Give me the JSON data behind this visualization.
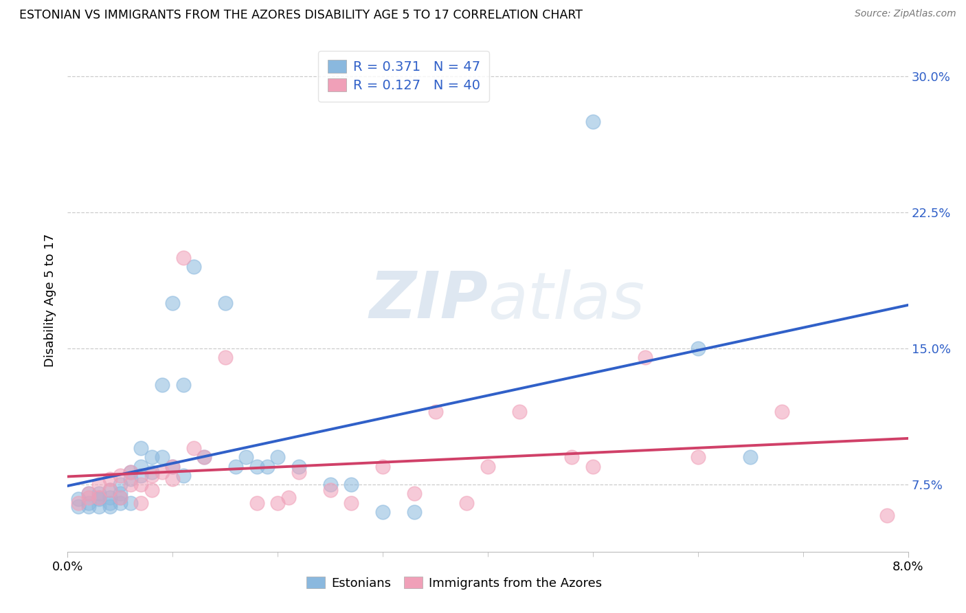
{
  "title": "ESTONIAN VS IMMIGRANTS FROM THE AZORES DISABILITY AGE 5 TO 17 CORRELATION CHART",
  "source": "Source: ZipAtlas.com",
  "ylabel": "Disability Age 5 to 17",
  "y_ticks": [
    0.075,
    0.15,
    0.225,
    0.3
  ],
  "y_tick_labels": [
    "7.5%",
    "15.0%",
    "22.5%",
    "30.0%"
  ],
  "x_min": 0.0,
  "x_max": 0.08,
  "y_min": 0.038,
  "y_max": 0.315,
  "legend_label1": "Estonians",
  "legend_label2": "Immigrants from the Azores",
  "r1": 0.371,
  "n1": 47,
  "r2": 0.127,
  "n2": 40,
  "color_blue": "#8ab8de",
  "color_pink": "#f0a0b8",
  "line_blue": "#3060c8",
  "line_pink": "#d04068",
  "watermark_zip": "ZIP",
  "watermark_atlas": "atlas",
  "blue_x": [
    0.001,
    0.001,
    0.002,
    0.002,
    0.002,
    0.003,
    0.003,
    0.003,
    0.003,
    0.004,
    0.004,
    0.004,
    0.004,
    0.005,
    0.005,
    0.005,
    0.005,
    0.006,
    0.006,
    0.006,
    0.007,
    0.007,
    0.007,
    0.008,
    0.008,
    0.009,
    0.009,
    0.01,
    0.01,
    0.011,
    0.011,
    0.012,
    0.013,
    0.015,
    0.016,
    0.017,
    0.018,
    0.019,
    0.02,
    0.022,
    0.025,
    0.027,
    0.03,
    0.033,
    0.05,
    0.06,
    0.065
  ],
  "blue_y": [
    0.063,
    0.067,
    0.065,
    0.07,
    0.063,
    0.068,
    0.07,
    0.063,
    0.067,
    0.068,
    0.072,
    0.065,
    0.063,
    0.07,
    0.075,
    0.065,
    0.068,
    0.082,
    0.078,
    0.065,
    0.08,
    0.085,
    0.095,
    0.082,
    0.09,
    0.09,
    0.13,
    0.175,
    0.085,
    0.13,
    0.08,
    0.195,
    0.09,
    0.175,
    0.085,
    0.09,
    0.085,
    0.085,
    0.09,
    0.085,
    0.075,
    0.075,
    0.06,
    0.06,
    0.275,
    0.15,
    0.09
  ],
  "pink_x": [
    0.001,
    0.002,
    0.002,
    0.003,
    0.003,
    0.004,
    0.004,
    0.005,
    0.005,
    0.006,
    0.006,
    0.007,
    0.007,
    0.008,
    0.008,
    0.009,
    0.01,
    0.01,
    0.011,
    0.012,
    0.013,
    0.015,
    0.018,
    0.02,
    0.021,
    0.022,
    0.025,
    0.027,
    0.03,
    0.033,
    0.035,
    0.038,
    0.04,
    0.043,
    0.048,
    0.05,
    0.055,
    0.06,
    0.068,
    0.078
  ],
  "pink_y": [
    0.065,
    0.07,
    0.068,
    0.075,
    0.068,
    0.072,
    0.078,
    0.08,
    0.068,
    0.075,
    0.082,
    0.075,
    0.065,
    0.08,
    0.072,
    0.082,
    0.085,
    0.078,
    0.2,
    0.095,
    0.09,
    0.145,
    0.065,
    0.065,
    0.068,
    0.082,
    0.072,
    0.065,
    0.085,
    0.07,
    0.115,
    0.065,
    0.085,
    0.115,
    0.09,
    0.085,
    0.145,
    0.09,
    0.115,
    0.058
  ]
}
